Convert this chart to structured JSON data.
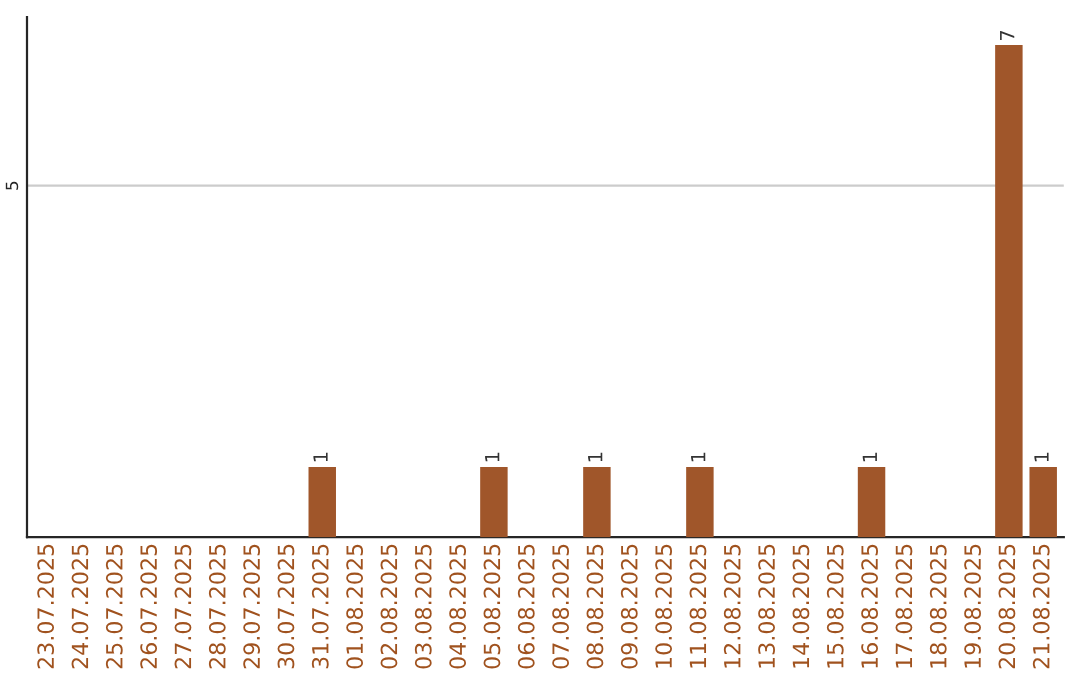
{
  "chart_data": {
    "type": "bar",
    "categories": [
      "23.07.2025",
      "24.07.2025",
      "25.07.2025",
      "26.07.2025",
      "27.07.2025",
      "28.07.2025",
      "29.07.2025",
      "30.07.2025",
      "31.07.2025",
      "01.08.2025",
      "02.08.2025",
      "03.08.2025",
      "04.08.2025",
      "05.08.2025",
      "06.08.2025",
      "07.08.2025",
      "08.08.2025",
      "09.08.2025",
      "10.08.2025",
      "11.08.2025",
      "12.08.2025",
      "13.08.2025",
      "14.08.2025",
      "15.08.2025",
      "16.08.2025",
      "17.08.2025",
      "18.08.2025",
      "19.08.2025",
      "20.08.2025",
      "21.08.2025"
    ],
    "values": [
      0,
      0,
      0,
      0,
      0,
      0,
      0,
      0,
      1,
      0,
      0,
      0,
      0,
      1,
      0,
      0,
      1,
      0,
      0,
      1,
      0,
      0,
      0,
      0,
      1,
      0,
      0,
      0,
      7,
      1
    ],
    "value_labels": [
      null,
      null,
      null,
      null,
      null,
      null,
      null,
      null,
      "1",
      null,
      null,
      null,
      null,
      "1",
      null,
      null,
      "1",
      null,
      null,
      "1",
      null,
      null,
      null,
      null,
      "1",
      null,
      null,
      null,
      "7",
      "1"
    ],
    "color": "#a0562a",
    "ylim": [
      0,
      7.4
    ],
    "yticks": [
      5
    ],
    "grid": "y"
  }
}
